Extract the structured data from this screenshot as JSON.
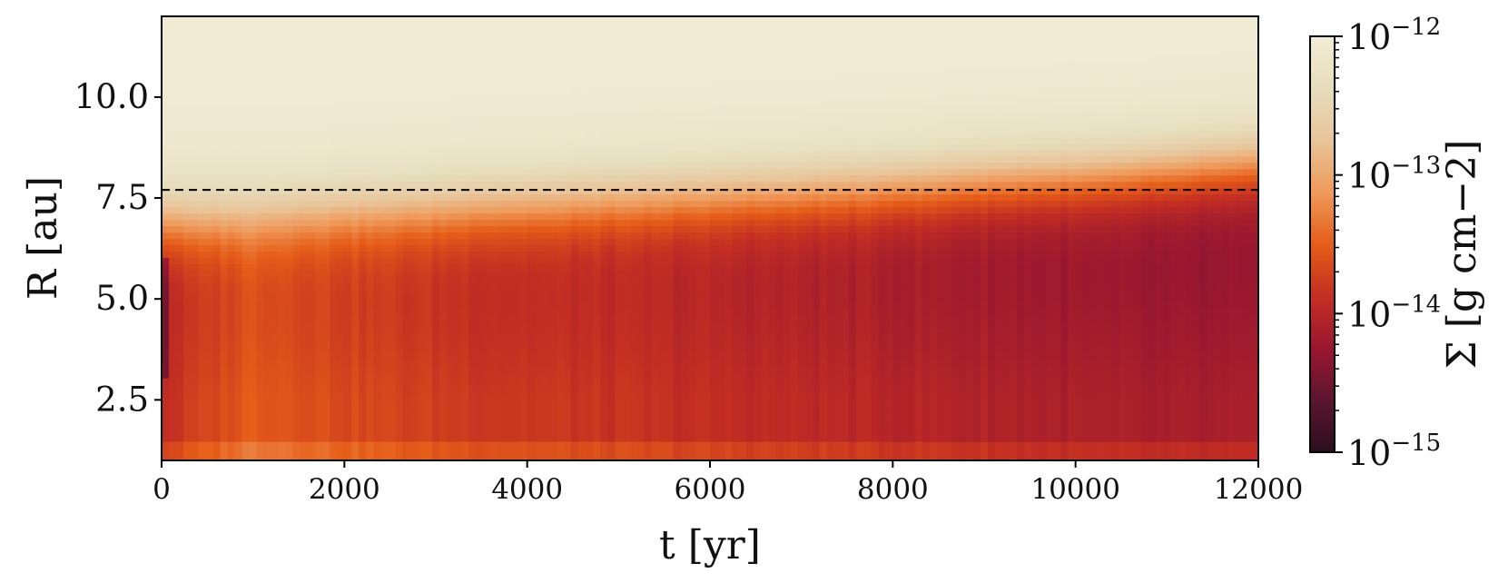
{
  "chart_data": {
    "type": "heatmap",
    "x_label": "t [yr]",
    "y_label": "R [au]",
    "x_range": [
      0,
      12000
    ],
    "y_range": [
      1.0,
      12.0
    ],
    "x_ticks": [
      {
        "value": 0,
        "label": "0"
      },
      {
        "value": 2000,
        "label": "2000"
      },
      {
        "value": 4000,
        "label": "4000"
      },
      {
        "value": 6000,
        "label": "6000"
      },
      {
        "value": 8000,
        "label": "8000"
      },
      {
        "value": 10000,
        "label": "10000"
      },
      {
        "value": 12000,
        "label": "12000"
      }
    ],
    "y_ticks": [
      {
        "value": 2.5,
        "label": "2.5"
      },
      {
        "value": 5.0,
        "label": "5.0"
      },
      {
        "value": 7.5,
        "label": "7.5"
      },
      {
        "value": 10.0,
        "label": "10.0"
      }
    ],
    "reference_line": {
      "orientation": "horizontal",
      "y": 7.7,
      "style": "dashed",
      "color": "#000000"
    },
    "colorbar": {
      "label": "Σ [g cm−2]",
      "scale": "log",
      "range": [
        1e-15,
        1e-12
      ],
      "ticks": [
        {
          "value": 1e-15,
          "base": "10",
          "exp": "−15"
        },
        {
          "value": 1e-14,
          "base": "10",
          "exp": "−14"
        },
        {
          "value": 1e-13,
          "base": "10",
          "exp": "−13"
        },
        {
          "value": 1e-12,
          "base": "10",
          "exp": "−12"
        }
      ],
      "colors": [
        "#2a0f1d",
        "#5c1530",
        "#9a1730",
        "#c42f22",
        "#e55d18",
        "#ef9a5a",
        "#e8c59a",
        "#e6ddbc",
        "#f2ecd6"
      ]
    },
    "field": {
      "description_values_log10": "approximate log10(Sigma) vs time and radius",
      "times": [
        0,
        1000,
        2000,
        3000,
        4000,
        5000,
        6000,
        7000,
        8000,
        9000,
        10000,
        11000,
        12000
      ],
      "inner_log_sigma": [
        -13.9,
        -13.5,
        -13.65,
        -13.75,
        -13.8,
        -13.85,
        -13.9,
        -13.95,
        -14.0,
        -14.05,
        -14.1,
        -14.15,
        -14.15
      ],
      "transition_radius_au": [
        6.0,
        6.1,
        6.2,
        6.3,
        6.4,
        6.5,
        6.6,
        6.7,
        6.8,
        6.95,
        7.05,
        7.2,
        7.4
      ],
      "outer_log_sigma": -12.05
    }
  }
}
